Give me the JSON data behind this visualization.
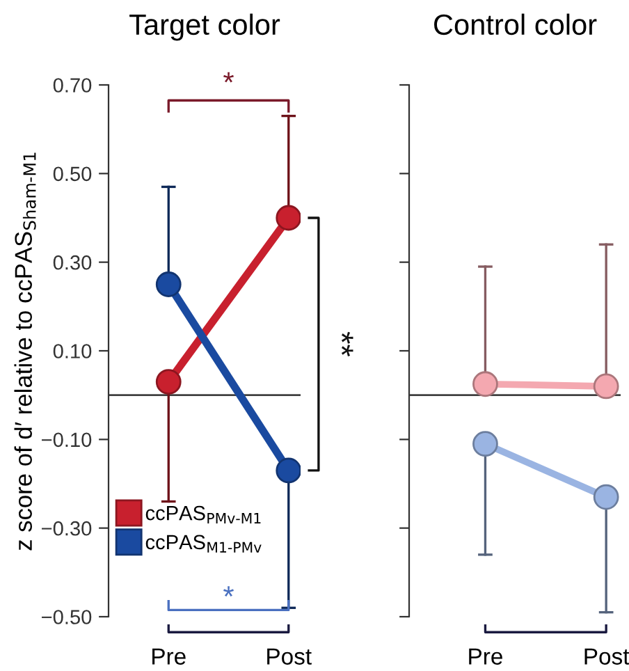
{
  "chart_data": [
    {
      "type": "line",
      "title": "Target color",
      "ylabel": "z score of d′ relative to ccPAS$_{Sham-M1}$",
      "categories": [
        "Pre",
        "Post"
      ],
      "series": [
        {
          "name": "ccPAS$_{PMv-M1}$",
          "color": "#c8202e",
          "values": [
            0.03,
            0.4
          ],
          "errors": [
            [
              -0.24,
              0.03
            ],
            [
              0.4,
              0.63
            ]
          ]
        },
        {
          "name": "ccPAS$_{M1-PMv}$",
          "color": "#1a4aa0",
          "values": [
            0.25,
            -0.17
          ],
          "errors": [
            [
              0.25,
              0.47
            ],
            [
              -0.48,
              -0.17
            ]
          ]
        }
      ],
      "ylim": [
        -0.5,
        0.7
      ],
      "yticks": [
        {
          "value": -0.5,
          "label": "−0.50"
        },
        {
          "value": -0.3,
          "label": "−0.30"
        },
        {
          "value": -0.1,
          "label": "−0.10"
        },
        {
          "value": 0.1,
          "label": "0.10"
        },
        {
          "value": 0.3,
          "label": "0.30"
        },
        {
          "value": 0.5,
          "label": "0.50"
        },
        {
          "value": 0.7,
          "label": "0.70"
        }
      ],
      "ref_lines": [
        {
          "axis": "y",
          "value": 0,
          "color": "#404040"
        }
      ],
      "annotations": [
        "*",
        "**",
        "*"
      ],
      "marker": "circle",
      "legend": "bottom left",
      "grid": false
    },
    {
      "type": "line",
      "title": "Control color",
      "categories": [
        "Pre",
        "Post"
      ],
      "series": [
        {
          "color": "#f4a8b0",
          "values": [
            0.025,
            0.02
          ],
          "errors": [
            [
              0.025,
              0.29
            ],
            [
              0.02,
              0.34
            ]
          ]
        },
        {
          "color": "#9ab4e2",
          "values": [
            -0.11,
            -0.23
          ],
          "errors": [
            [
              -0.36,
              -0.11
            ],
            [
              -0.49,
              -0.23
            ]
          ]
        }
      ],
      "ylim": [
        -0.5,
        0.7
      ],
      "yticks": [
        {
          "value": -0.5,
          "label": null
        },
        {
          "value": -0.3,
          "label": null
        },
        {
          "value": -0.1,
          "label": null
        },
        {
          "value": 0.1,
          "label": null
        },
        {
          "value": 0.3,
          "label": null
        },
        {
          "value": 0.5,
          "label": null
        },
        {
          "value": 0.7,
          "label": null
        }
      ],
      "ref_lines": [
        {
          "axis": "y",
          "value": 0,
          "color": "#404040"
        }
      ],
      "tick_labels": "x",
      "marker": "circle",
      "grid": false
    }
  ]
}
